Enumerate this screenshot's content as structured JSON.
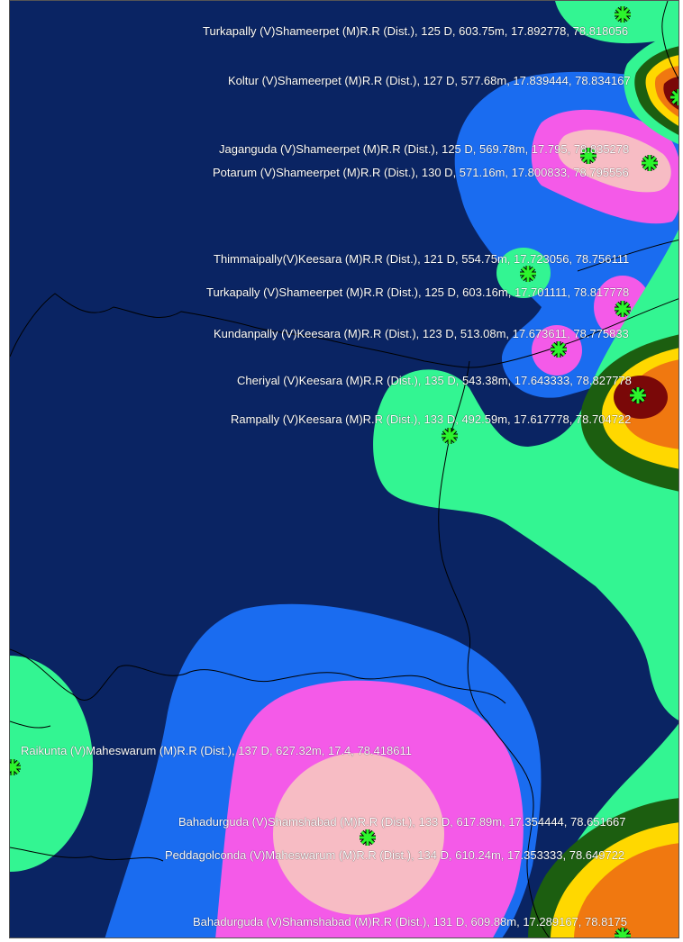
{
  "zone_colors": {
    "background": "#0a2463",
    "blue": "#1a6cf0",
    "magenta": "#f45ae8",
    "pink": "#f7bcc4",
    "green": "#33f592",
    "dark_green": "#1c5e10",
    "yellow": "#ffd800",
    "orange": "#f07810",
    "dark_red": "#7a0808",
    "boundary": "#000000",
    "marker": "#2cf52c"
  },
  "marker_icon": "asterisk-marker-icon",
  "stations": [
    {
      "text": "Turkapally (V)Shameerpet (M)R.R  (Dist.),  125 D,  603.75m, 17.892778, 78.818056"
    },
    {
      "text": "Koltur (V)Shameerpet (M)R.R  (Dist.),  127 D,  577.68m, 17.839444, 78.834167"
    },
    {
      "text": "Jaganguda (V)Shameerpet (M)R.R  (Dist.),  125 D,  569.78m, 17.795, 78.835278"
    },
    {
      "text": "Potarum (V)Shameerpet (M)R.R  (Dist.),  130 D,  571.16m, 17.800833, 78.795556"
    },
    {
      "text": "Thimmaipally(V)Keesara (M)R.R  (Dist.),  121 D,  554.75m, 17.723056, 78.756111"
    },
    {
      "text": "Turkapally (V)Shameerpet (M)R.R  (Dist.),  125 D,  603.16m, 17.701111, 78.817778"
    },
    {
      "text": "Kundanpally (V)Keesara (M)R.R  (Dist.),  123 D,  513.08m, 17.673611, 78.775833"
    },
    {
      "text": "Cheriyal (V)Keesara (M)R.R  (Dist.),  135 D,  543.38m, 17.643333, 78.827778"
    },
    {
      "text": "Rampally (V)Keesara (M)R.R  (Dist.),  133 D,  492.59m, 17.617778, 78.704722"
    },
    {
      "text": "Raikunta (V)Maheswarum (M)R.R  (Dist.),  137 D,  627.32m, 17.4, 78.418611"
    },
    {
      "text": "Bahadurguda (V)Shamshabad (M)R.R  (Dist.),  133 D,  617.89m, 17.354444, 78.651667"
    },
    {
      "text": "Peddagolconda (V)Maheswarum (M)R.R  (Dist.),  134 D,  610.24m, 17.353333, 78.649722"
    },
    {
      "text": "Bahadurguda (V)Shamshabad (M)R.R  (Dist.),  131 D,  609.88m, 17.289167, 78.8175"
    }
  ]
}
